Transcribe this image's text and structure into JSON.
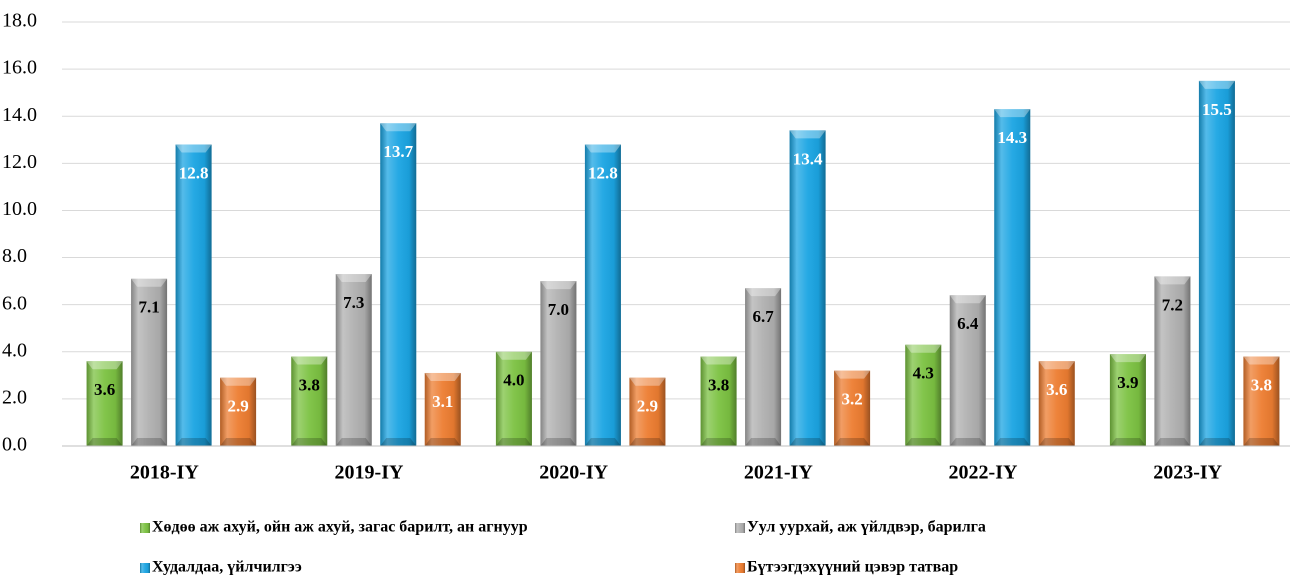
{
  "chart_data": {
    "type": "bar",
    "categories": [
      "2018-IY",
      "2019-IY",
      "2020-IY",
      "2021-IY",
      "2022-IY",
      "2023-IY"
    ],
    "series": [
      {
        "name": "Хөдөө аж ахуй, ойн аж ахуй, загас барилт, ан агнуур",
        "color": "#7cc242",
        "label_color": "#000000",
        "values": [
          3.6,
          3.8,
          4.0,
          3.8,
          4.3,
          3.9
        ],
        "value_labels": [
          "3.6",
          "3.8",
          "4.0",
          "3.8",
          "4.3",
          "3.9"
        ]
      },
      {
        "name": "Уул уурхай, аж үйлдвэр, барилга",
        "color": "#b0b0b0",
        "label_color": "#000000",
        "values": [
          7.1,
          7.3,
          7.0,
          6.7,
          6.4,
          7.2
        ],
        "value_labels": [
          "7.1",
          "7.3",
          "7.0",
          "6.7",
          "6.4",
          "7.2"
        ]
      },
      {
        "name": "Худалдаа, үйлчилгээ",
        "color": "#1ba5e3",
        "label_color": "#ffffff",
        "values": [
          12.8,
          13.7,
          12.8,
          13.4,
          14.3,
          15.5
        ],
        "value_labels": [
          "12.8",
          "13.7",
          "12.8",
          "13.4",
          "14.3",
          "15.5"
        ]
      },
      {
        "name": "Бүтээгдэхүүний цэвэр татвар",
        "color": "#ed7d31",
        "label_color": "#ffffff",
        "values": [
          2.9,
          3.1,
          2.9,
          3.2,
          3.6,
          3.8
        ],
        "value_labels": [
          "2.9",
          "3.1",
          "2.9",
          "3.2",
          "3.6",
          "3.8"
        ]
      }
    ],
    "ylim": [
      0,
      18
    ],
    "yticks": [
      {
        "value": 0,
        "label": "0.0"
      },
      {
        "value": 2,
        "label": "2.0"
      },
      {
        "value": 4,
        "label": "4.0"
      },
      {
        "value": 6,
        "label": "6.0"
      },
      {
        "value": 8,
        "label": "8.0"
      },
      {
        "value": 10,
        "label": "10.0"
      },
      {
        "value": 12,
        "label": "12.0"
      },
      {
        "value": 14,
        "label": "14.0"
      },
      {
        "value": 16,
        "label": "16.0"
      },
      {
        "value": 18,
        "label": "18.0"
      }
    ],
    "grid": true,
    "legend": "bottom"
  }
}
